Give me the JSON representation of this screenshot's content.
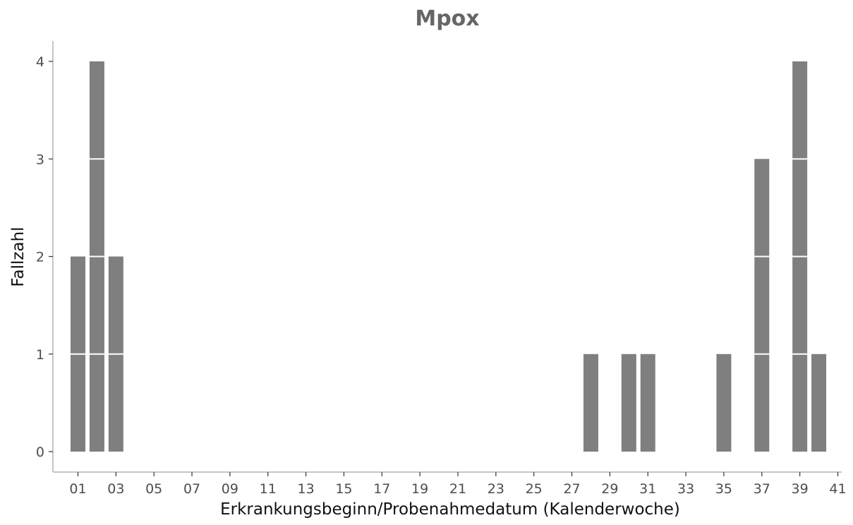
{
  "chart_data": {
    "type": "bar",
    "title": "Mpox",
    "xlabel": "Erkrankungsbeginn/Probenahmedatum (Kalenderwoche)",
    "ylabel": "Fallzahl",
    "x_tick_labels": [
      "01",
      "03",
      "05",
      "07",
      "09",
      "11",
      "13",
      "15",
      "17",
      "19",
      "21",
      "23",
      "25",
      "27",
      "29",
      "31",
      "33",
      "35",
      "37",
      "39",
      "41"
    ],
    "y_tick_labels": [
      "0",
      "1",
      "2",
      "3",
      "4"
    ],
    "xlim": [
      1,
      41
    ],
    "ylim": [
      0,
      4
    ],
    "bars": [
      {
        "week": 1,
        "value": 2
      },
      {
        "week": 2,
        "value": 4
      },
      {
        "week": 3,
        "value": 2
      },
      {
        "week": 28,
        "value": 1
      },
      {
        "week": 30,
        "value": 1
      },
      {
        "week": 31,
        "value": 1
      },
      {
        "week": 35,
        "value": 1
      },
      {
        "week": 37,
        "value": 3
      },
      {
        "week": 39,
        "value": 4
      },
      {
        "week": 40,
        "value": 1
      }
    ],
    "stacked_unit_segments": true,
    "grid": false,
    "legend": "none",
    "bar_color": "#7f7f7f"
  }
}
